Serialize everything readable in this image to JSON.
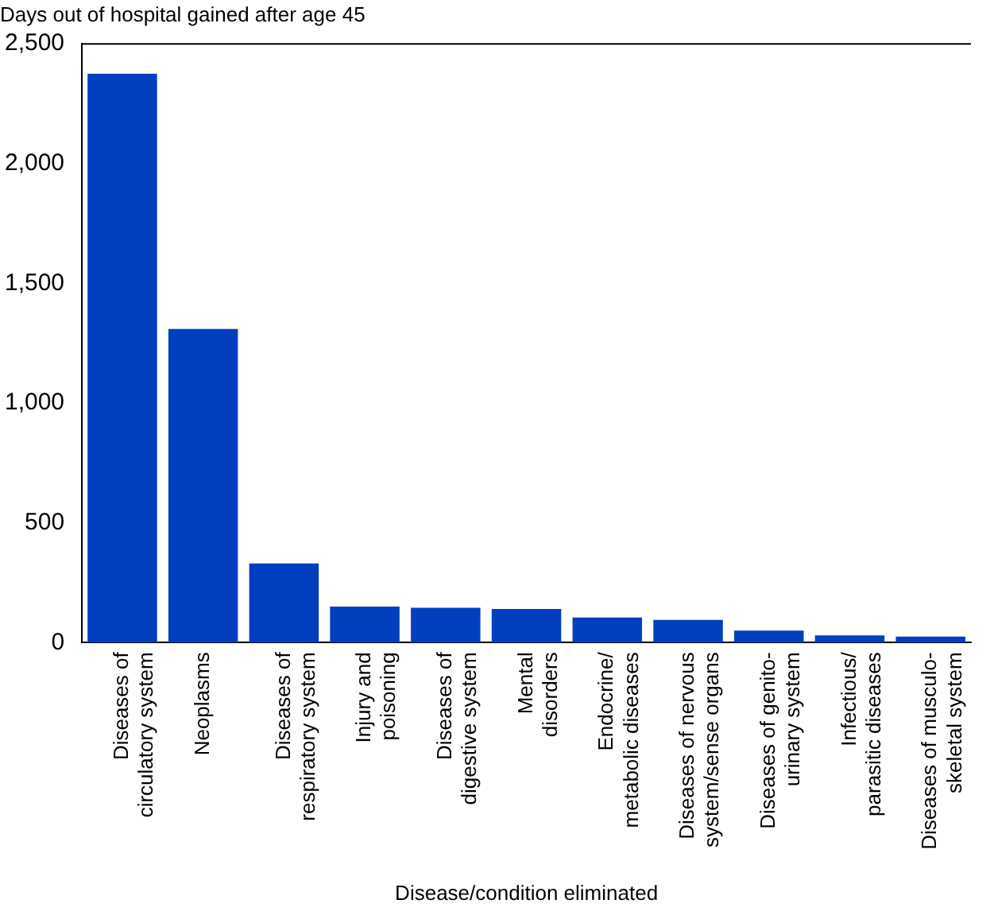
{
  "chart_data": {
    "type": "bar",
    "title": "Days out of hospital gained after age 45",
    "xlabel": "Disease/condition eliminated",
    "categories": [
      "Diseases of circulatory system",
      "Neoplasms",
      "Diseases of respiratory system",
      "Injury and poisoning",
      "Diseases of digestive system",
      "Mental disorders",
      "Endocrine/metabolic diseases",
      "Diseases of nervous system/sense organs",
      "Diseases of genito-urinary system",
      "Infectious/parasitic diseases",
      "Diseases of musculo-skeletal system"
    ],
    "values": [
      2375,
      1310,
      330,
      150,
      145,
      140,
      105,
      95,
      50,
      30,
      25
    ],
    "color": "#0040c0",
    "ylim": [
      0,
      2500
    ],
    "yticks": [
      {
        "value": 0,
        "label": "0"
      },
      {
        "value": 500,
        "label": "500"
      },
      {
        "value": 1000,
        "label": "1,000"
      },
      {
        "value": 1500,
        "label": "1,500"
      },
      {
        "value": 2000,
        "label": "2,000"
      },
      {
        "value": 2500,
        "label": "2,500"
      }
    ],
    "grid": false,
    "legend": false
  }
}
